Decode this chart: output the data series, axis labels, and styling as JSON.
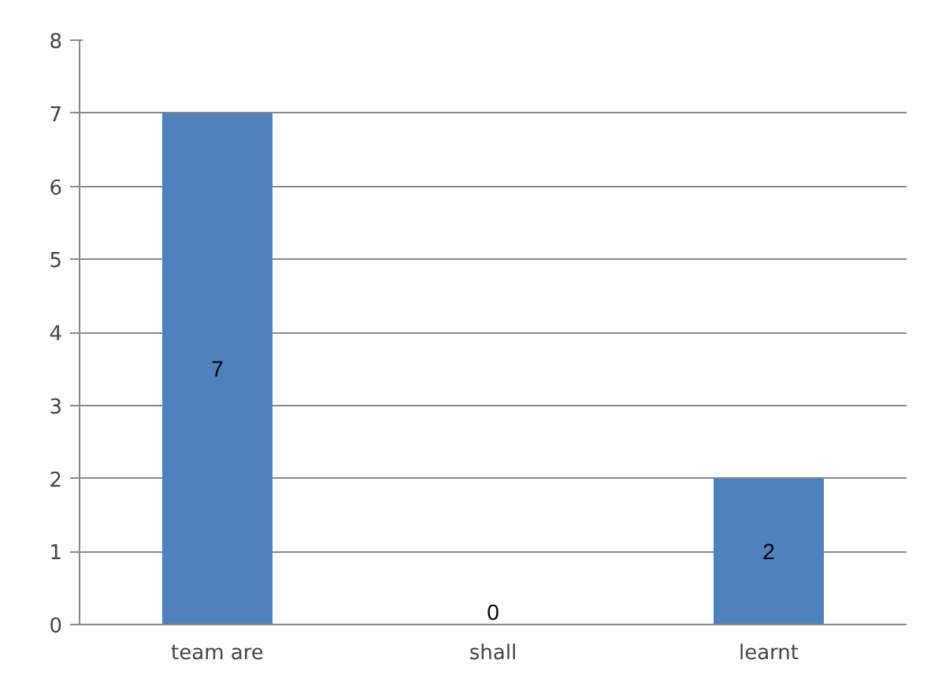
{
  "chart_data": {
    "type": "bar",
    "categories": [
      "team are",
      "shall",
      "learnt"
    ],
    "values": [
      7,
      0,
      2
    ],
    "color": "#4f81bd",
    "ylim": [
      0,
      8
    ],
    "yticks": [
      0,
      1,
      2,
      3,
      4,
      5,
      6,
      7,
      8
    ],
    "grid": "y",
    "data_labels": true
  }
}
